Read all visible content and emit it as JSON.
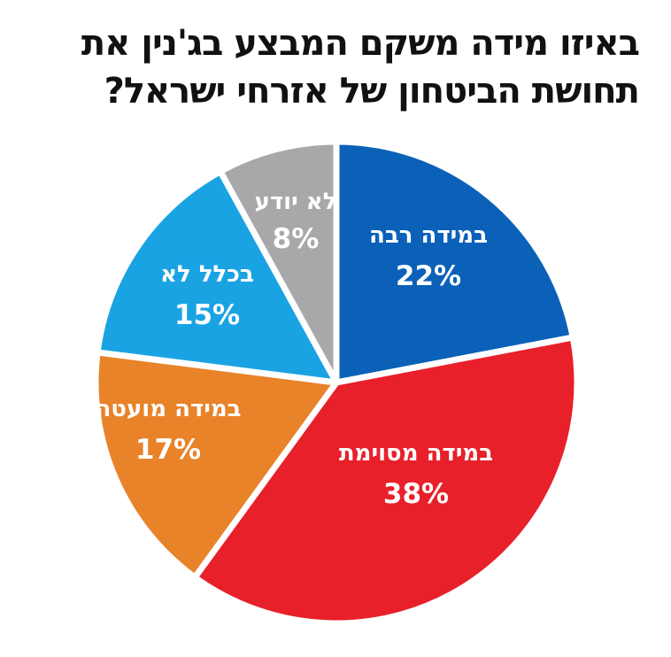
{
  "chart_data": {
    "type": "pie",
    "title": "באיזו מידה משקם המבצע בג'נין את תחושת הביטחון של אזרחי ישראל?",
    "start_angle_deg": 0,
    "direction": "clockwise",
    "slices": [
      {
        "label": "במידה רבה",
        "value": 22,
        "value_label": "22%",
        "color": "#0b61b8"
      },
      {
        "label": "במידה מסוימת",
        "value": 38,
        "value_label": "38%",
        "color": "#e8202a"
      },
      {
        "label": "במידה מועטה",
        "value": 17,
        "value_label": "17%",
        "color": "#e8832a"
      },
      {
        "label": "בכלל לא",
        "value": 15,
        "value_label": "15%",
        "color": "#1aa3e3"
      },
      {
        "label": "לא יודע",
        "value": 8,
        "value_label": "8%",
        "color": "#a8a8aa"
      }
    ]
  }
}
